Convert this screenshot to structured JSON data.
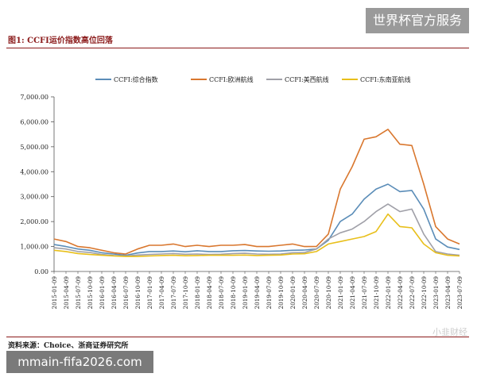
{
  "figure_title": "图1:  CCFI运价指数高位回落",
  "source": "资料来源：Choice、浙商证券研究所",
  "badge_top": "世界杯官方服务",
  "badge_bottom": "mmain-fifa2026.com",
  "watermark": "小韭财经",
  "colors": {
    "composite": "#5b8db8",
    "europe": "#d9772e",
    "usw": "#a0a0a8",
    "sea": "#e8bf1a",
    "title": "#8b1a1a"
  },
  "chart_data": {
    "type": "line",
    "title": "",
    "xlabel": "",
    "ylabel": "",
    "ylim": [
      0,
      7000
    ],
    "yticks": [
      "7,000.00",
      "6,000.00",
      "5,000.00",
      "4,000.00",
      "3,000.00",
      "2,000.00",
      "1,000.00",
      "0.00"
    ],
    "ytick_values": [
      7000,
      6000,
      5000,
      4000,
      3000,
      2000,
      1000,
      0
    ],
    "legend_position": "top",
    "x": [
      "2015-01-09",
      "2015-04-09",
      "2015-07-09",
      "2015-10-09",
      "2016-01-09",
      "2016-04-09",
      "2016-07-09",
      "2016-10-09",
      "2017-01-09",
      "2017-04-09",
      "2017-07-09",
      "2017-10-09",
      "2018-01-09",
      "2018-04-09",
      "2018-07-09",
      "2018-10-09",
      "2019-01-09",
      "2019-04-09",
      "2019-07-09",
      "2019-10-09",
      "2020-01-09",
      "2020-04-09",
      "2020-07-09",
      "2020-10-09",
      "2021-01-09",
      "2021-04-09",
      "2021-07-09",
      "2021-10-09",
      "2022-01-09",
      "2022-04-09",
      "2022-07-09",
      "2022-10-09",
      "2023-01-09",
      "2023-04-09",
      "2023-07-09"
    ],
    "series": [
      {
        "name": "CCFI:综合指数",
        "key": "composite",
        "values": [
          1080,
          1000,
          900,
          850,
          750,
          700,
          650,
          740,
          800,
          800,
          820,
          790,
          830,
          800,
          800,
          830,
          840,
          820,
          810,
          820,
          850,
          860,
          900,
          1250,
          2000,
          2300,
          2900,
          3300,
          3500,
          3200,
          3250,
          2500,
          1300,
          980,
          880
        ]
      },
      {
        "name": "CCFI:欧洲航线",
        "key": "europe",
        "values": [
          1300,
          1200,
          1000,
          950,
          850,
          750,
          700,
          900,
          1050,
          1050,
          1100,
          1000,
          1050,
          1000,
          1050,
          1050,
          1080,
          1000,
          1000,
          1050,
          1100,
          1000,
          1000,
          1500,
          3300,
          4200,
          5300,
          5400,
          5700,
          5100,
          5050,
          3500,
          1800,
          1300,
          1100
        ]
      },
      {
        "name": "CCFI:美西航线",
        "key": "usw",
        "values": [
          950,
          900,
          800,
          760,
          680,
          640,
          620,
          660,
          680,
          700,
          720,
          690,
          700,
          680,
          690,
          720,
          730,
          700,
          690,
          700,
          750,
          760,
          900,
          1300,
          1550,
          1700,
          2000,
          2400,
          2700,
          2400,
          2500,
          1500,
          800,
          700,
          650
        ]
      },
      {
        "name": "CCFI:东南亚航线",
        "key": "sea",
        "values": [
          850,
          800,
          720,
          680,
          650,
          620,
          600,
          600,
          620,
          640,
          650,
          630,
          640,
          650,
          650,
          650,
          660,
          640,
          650,
          660,
          700,
          710,
          800,
          1100,
          1200,
          1300,
          1400,
          1600,
          2300,
          1800,
          1750,
          1100,
          750,
          650,
          620
        ]
      }
    ]
  }
}
